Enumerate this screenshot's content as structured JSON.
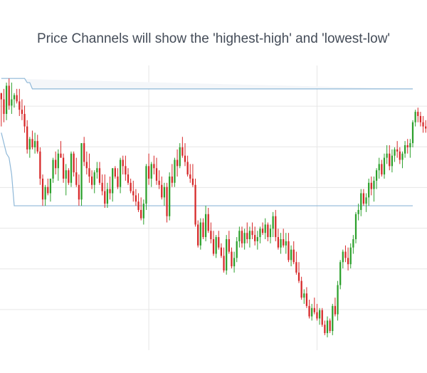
{
  "chart_data": {
    "type": "candlestick",
    "title": "Price Channels will show the 'highest-high' and 'lowest-low'",
    "xlabel": "",
    "ylabel": "",
    "grid": true,
    "legend": "none",
    "colors": {
      "up": "#2ca02c",
      "down": "#d62728",
      "channel": "#8fb8d8",
      "band_fill": "#f4f6f9",
      "grid": "#e6e6e6"
    },
    "ohlc": [
      [
        258,
        258,
        226,
        252
      ],
      [
        252,
        262,
        230,
        238
      ],
      [
        238,
        268,
        232,
        265
      ],
      [
        265,
        272,
        242,
        246
      ],
      [
        246,
        268,
        238,
        252
      ],
      [
        252,
        258,
        244,
        256
      ],
      [
        256,
        262,
        248,
        250
      ],
      [
        250,
        262,
        236,
        242
      ],
      [
        242,
        252,
        232,
        238
      ],
      [
        238,
        246,
        220,
        226
      ],
      [
        226,
        232,
        200,
        204
      ],
      [
        204,
        216,
        196,
        214
      ],
      [
        214,
        222,
        204,
        206
      ],
      [
        206,
        220,
        200,
        212
      ],
      [
        212,
        218,
        200,
        202
      ],
      [
        202,
        206,
        170,
        176
      ],
      [
        176,
        180,
        150,
        156
      ],
      [
        156,
        170,
        150,
        168
      ],
      [
        168,
        176,
        160,
        162
      ],
      [
        162,
        176,
        154,
        176
      ],
      [
        176,
        196,
        172,
        194
      ],
      [
        194,
        202,
        180,
        186
      ],
      [
        186,
        204,
        174,
        200
      ],
      [
        200,
        212,
        196,
        196
      ],
      [
        196,
        200,
        172,
        176
      ],
      [
        176,
        190,
        160,
        184
      ],
      [
        184,
        186,
        170,
        172
      ],
      [
        172,
        202,
        168,
        200
      ],
      [
        200,
        202,
        178,
        182
      ],
      [
        182,
        196,
        168,
        170
      ],
      [
        170,
        180,
        150,
        156
      ],
      [
        156,
        210,
        150,
        210
      ],
      [
        210,
        216,
        188,
        192
      ],
      [
        192,
        202,
        180,
        186
      ],
      [
        186,
        200,
        172,
        178
      ],
      [
        178,
        184,
        166,
        170
      ],
      [
        170,
        184,
        162,
        182
      ],
      [
        182,
        192,
        176,
        186
      ],
      [
        186,
        192,
        170,
        172
      ],
      [
        172,
        180,
        160,
        164
      ],
      [
        164,
        180,
        148,
        152
      ],
      [
        152,
        172,
        148,
        166
      ],
      [
        166,
        178,
        156,
        162
      ],
      [
        162,
        186,
        154,
        186
      ],
      [
        186,
        188,
        176,
        178
      ],
      [
        178,
        186,
        166,
        168
      ],
      [
        168,
        196,
        162,
        194
      ],
      [
        194,
        198,
        180,
        188
      ],
      [
        188,
        198,
        174,
        180
      ],
      [
        180,
        186,
        170,
        172
      ],
      [
        172,
        176,
        162,
        164
      ],
      [
        164,
        174,
        154,
        160
      ],
      [
        160,
        166,
        150,
        154
      ],
      [
        154,
        162,
        144,
        146
      ],
      [
        146,
        158,
        136,
        138
      ],
      [
        138,
        156,
        132,
        152
      ],
      [
        152,
        190,
        146,
        188
      ],
      [
        188,
        200,
        170,
        176
      ],
      [
        176,
        192,
        168,
        190
      ],
      [
        190,
        198,
        180,
        186
      ],
      [
        186,
        196,
        170,
        174
      ],
      [
        174,
        184,
        166,
        170
      ],
      [
        170,
        178,
        156,
        158
      ],
      [
        158,
        172,
        150,
        168
      ],
      [
        168,
        172,
        134,
        140
      ],
      [
        140,
        182,
        136,
        178
      ],
      [
        178,
        190,
        168,
        172
      ],
      [
        172,
        196,
        168,
        194
      ],
      [
        194,
        204,
        178,
        188
      ],
      [
        188,
        210,
        186,
        206
      ],
      [
        206,
        216,
        196,
        198
      ],
      [
        198,
        210,
        188,
        192
      ],
      [
        192,
        198,
        178,
        180
      ],
      [
        180,
        190,
        172,
        176
      ],
      [
        176,
        190,
        168,
        170
      ],
      [
        170,
        176,
        130,
        132
      ],
      [
        132,
        136,
        110,
        112
      ],
      [
        112,
        138,
        108,
        134
      ],
      [
        134,
        138,
        118,
        120
      ],
      [
        120,
        150,
        116,
        142
      ],
      [
        142,
        148,
        124,
        126
      ],
      [
        126,
        134,
        114,
        118
      ],
      [
        118,
        126,
        102,
        104
      ],
      [
        104,
        122,
        100,
        120
      ],
      [
        120,
        126,
        108,
        110
      ],
      [
        110,
        114,
        100,
        102
      ],
      [
        102,
        110,
        86,
        88
      ],
      [
        88,
        122,
        84,
        118
      ],
      [
        118,
        126,
        104,
        106
      ],
      [
        106,
        110,
        90,
        92
      ],
      [
        92,
        106,
        86,
        100
      ],
      [
        100,
        120,
        96,
        116
      ],
      [
        116,
        130,
        110,
        126
      ],
      [
        126,
        130,
        110,
        114
      ],
      [
        114,
        128,
        108,
        124
      ],
      [
        124,
        134,
        114,
        118
      ],
      [
        118,
        130,
        110,
        126
      ],
      [
        126,
        134,
        118,
        122
      ],
      [
        122,
        130,
        112,
        116
      ],
      [
        116,
        126,
        108,
        120
      ],
      [
        120,
        130,
        114,
        128
      ],
      [
        128,
        134,
        122,
        124
      ],
      [
        124,
        138,
        118,
        132
      ],
      [
        132,
        134,
        116,
        120
      ],
      [
        120,
        132,
        114,
        128
      ],
      [
        128,
        144,
        120,
        140
      ],
      [
        140,
        146,
        116,
        120
      ],
      [
        120,
        128,
        108,
        110
      ],
      [
        110,
        124,
        104,
        118
      ],
      [
        118,
        128,
        110,
        112
      ],
      [
        112,
        124,
        104,
        116
      ],
      [
        116,
        124,
        96,
        98
      ],
      [
        98,
        112,
        92,
        108
      ],
      [
        108,
        116,
        94,
        96
      ],
      [
        96,
        106,
        84,
        86
      ],
      [
        86,
        96,
        76,
        78
      ],
      [
        78,
        82,
        60,
        62
      ],
      [
        62,
        70,
        56,
        66
      ],
      [
        66,
        72,
        52,
        54
      ],
      [
        54,
        60,
        42,
        44
      ],
      [
        44,
        56,
        40,
        52
      ],
      [
        52,
        62,
        46,
        48
      ],
      [
        48,
        56,
        40,
        42
      ],
      [
        42,
        52,
        36,
        50
      ],
      [
        50,
        52,
        34,
        36
      ],
      [
        36,
        40,
        26,
        28
      ],
      [
        28,
        44,
        24,
        40
      ],
      [
        40,
        42,
        28,
        30
      ],
      [
        30,
        56,
        26,
        54
      ],
      [
        54,
        62,
        44,
        46
      ],
      [
        46,
        78,
        40,
        74
      ],
      [
        74,
        98,
        70,
        96
      ],
      [
        96,
        108,
        90,
        106
      ],
      [
        106,
        112,
        96,
        100
      ],
      [
        100,
        110,
        88,
        94
      ],
      [
        94,
        114,
        90,
        110
      ],
      [
        110,
        122,
        104,
        118
      ],
      [
        118,
        144,
        114,
        142
      ],
      [
        142,
        152,
        136,
        146
      ],
      [
        146,
        166,
        140,
        162
      ],
      [
        162,
        166,
        150,
        152
      ],
      [
        152,
        162,
        144,
        158
      ],
      [
        158,
        176,
        150,
        172
      ],
      [
        172,
        178,
        160,
        166
      ],
      [
        166,
        178,
        154,
        174
      ],
      [
        174,
        186,
        166,
        184
      ],
      [
        184,
        196,
        176,
        190
      ],
      [
        190,
        194,
        178,
        180
      ],
      [
        180,
        200,
        176,
        196
      ],
      [
        196,
        208,
        190,
        200
      ],
      [
        200,
        208,
        184,
        188
      ],
      [
        188,
        204,
        182,
        198
      ],
      [
        198,
        206,
        192,
        204
      ],
      [
        204,
        212,
        196,
        202
      ],
      [
        202,
        206,
        190,
        194
      ],
      [
        194,
        202,
        186,
        200
      ],
      [
        200,
        212,
        196,
        208
      ],
      [
        208,
        214,
        200,
        206
      ],
      [
        206,
        214,
        196,
        210
      ],
      [
        210,
        232,
        206,
        230
      ],
      [
        230,
        242,
        226,
        240
      ],
      [
        240,
        244,
        230,
        236
      ],
      [
        236,
        240,
        226,
        230
      ],
      [
        230,
        236,
        220,
        226
      ],
      [
        226,
        232,
        220,
        224
      ]
    ],
    "highest_high": [
      272,
      272,
      272,
      272,
      272,
      272,
      272,
      272,
      272,
      272,
      268,
      268,
      262,
      262,
      262,
      262,
      262,
      262,
      262,
      262,
      262,
      262,
      262,
      262,
      262,
      262,
      262,
      262,
      262,
      262,
      262,
      262,
      262,
      262,
      262,
      262,
      262,
      262,
      262,
      262,
      262,
      262,
      262,
      262,
      262,
      262,
      262,
      262,
      262,
      262,
      262,
      262,
      262,
      262,
      262,
      262,
      262,
      262,
      262,
      262,
      262,
      262,
      262,
      262,
      262,
      262,
      262,
      262,
      262,
      262,
      262,
      262,
      262,
      262,
      262,
      262,
      262,
      262,
      262,
      262,
      262,
      262,
      262,
      262,
      262,
      262,
      262,
      262,
      262,
      262,
      262,
      262,
      262,
      262,
      262,
      262,
      262,
      262,
      262,
      262,
      262,
      262,
      262,
      262,
      262,
      262,
      262,
      262,
      262,
      262,
      262,
      262,
      262,
      262,
      262,
      262,
      262,
      262,
      262,
      262,
      262,
      262,
      262,
      262,
      262,
      262,
      262,
      262,
      262,
      262,
      262,
      262,
      262,
      262,
      262,
      262,
      262,
      262,
      262,
      262,
      262,
      262,
      262,
      262,
      262,
      262,
      262,
      262,
      262,
      262,
      262,
      262,
      262,
      262,
      262,
      262,
      262,
      262,
      262,
      262
    ],
    "lowest_low": [
      220,
      210,
      200,
      196,
      180,
      150,
      150,
      150,
      150,
      150,
      150,
      150,
      150,
      150,
      150,
      150,
      150,
      150,
      150,
      150,
      150,
      150,
      150,
      150,
      150,
      150,
      150,
      150,
      150,
      150,
      150,
      150,
      150,
      150,
      150,
      150,
      150,
      150,
      150,
      150,
      150,
      150,
      150,
      150,
      150,
      150,
      150,
      150,
      150,
      150,
      150,
      150,
      150,
      150,
      150,
      150,
      150,
      150,
      150,
      150,
      150,
      150,
      150,
      150,
      150,
      150,
      150,
      150,
      150,
      150,
      150,
      150,
      150,
      150,
      150,
      150,
      150,
      150,
      150,
      150,
      150,
      150,
      150,
      150,
      150,
      150,
      150,
      150,
      150,
      150,
      150,
      150,
      150,
      150,
      150,
      150,
      150,
      150,
      150,
      150,
      150,
      150,
      150,
      150,
      150,
      150,
      150,
      150,
      150,
      150,
      150,
      150,
      150,
      150,
      150,
      150,
      150,
      150,
      150,
      150,
      150,
      150,
      150,
      150,
      150,
      150,
      150,
      150,
      150,
      150,
      150,
      150,
      150,
      150,
      150,
      150,
      150,
      150,
      150,
      150,
      150,
      150,
      150,
      150,
      150,
      150,
      150,
      150,
      150,
      150,
      150,
      150,
      150,
      150,
      150,
      150,
      150,
      150,
      150,
      150
    ]
  }
}
